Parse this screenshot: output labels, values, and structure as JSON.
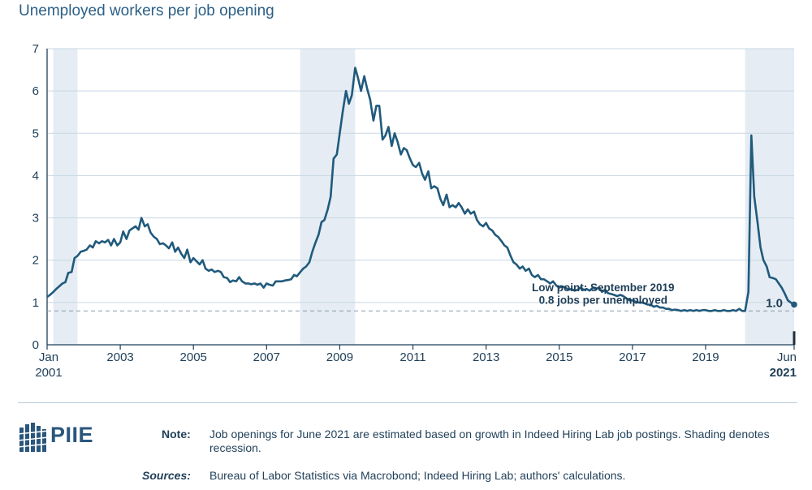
{
  "title": "Unemployed workers per job opening",
  "chart_data": {
    "type": "line",
    "title": "Unemployed workers per job opening",
    "ylim": [
      0,
      7
    ],
    "yticks": [
      "0",
      "1",
      "2",
      "3",
      "4",
      "5",
      "6",
      "7"
    ],
    "xticks": [
      {
        "label": "Jan",
        "label2": "2001",
        "year": 2001.0
      },
      {
        "label": "2003",
        "year": 2003.0
      },
      {
        "label": "2005",
        "year": 2005.0
      },
      {
        "label": "2007",
        "year": 2007.0
      },
      {
        "label": "2009",
        "year": 2009.0
      },
      {
        "label": "2011",
        "year": 2011.0
      },
      {
        "label": "2013",
        "year": 2013.0
      },
      {
        "label": "2015",
        "year": 2015.0
      },
      {
        "label": "2017",
        "year": 2017.0
      },
      {
        "label": "2019",
        "year": 2019.0
      },
      {
        "label": "Jun",
        "label2": "2021",
        "year": 2021.42,
        "bold2": true
      }
    ],
    "grid": true,
    "recessions": [
      {
        "start": 2001.17,
        "end": 2001.83
      },
      {
        "start": 2007.92,
        "end": 2009.42
      },
      {
        "start": 2020.08,
        "end": 2021.42
      }
    ],
    "reference_line": {
      "value": 0.8
    },
    "annotation": {
      "line1": "Low point: September 2019",
      "line2": "0.8 jobs per unemployed"
    },
    "end_label": "1.0",
    "series": [
      {
        "color": "#205a7c",
        "points": [
          [
            2001.0,
            1.13
          ],
          [
            2001.08,
            1.18
          ],
          [
            2001.17,
            1.25
          ],
          [
            2001.25,
            1.32
          ],
          [
            2001.33,
            1.38
          ],
          [
            2001.42,
            1.45
          ],
          [
            2001.5,
            1.48
          ],
          [
            2001.58,
            1.7
          ],
          [
            2001.67,
            1.72
          ],
          [
            2001.75,
            2.05
          ],
          [
            2001.83,
            2.1
          ],
          [
            2001.92,
            2.2
          ],
          [
            2002.0,
            2.22
          ],
          [
            2002.08,
            2.25
          ],
          [
            2002.17,
            2.35
          ],
          [
            2002.25,
            2.3
          ],
          [
            2002.33,
            2.45
          ],
          [
            2002.42,
            2.4
          ],
          [
            2002.5,
            2.45
          ],
          [
            2002.58,
            2.42
          ],
          [
            2002.67,
            2.48
          ],
          [
            2002.75,
            2.35
          ],
          [
            2002.83,
            2.5
          ],
          [
            2002.92,
            2.35
          ],
          [
            2003.0,
            2.42
          ],
          [
            2003.08,
            2.68
          ],
          [
            2003.17,
            2.5
          ],
          [
            2003.25,
            2.7
          ],
          [
            2003.33,
            2.75
          ],
          [
            2003.42,
            2.8
          ],
          [
            2003.5,
            2.72
          ],
          [
            2003.58,
            3.0
          ],
          [
            2003.67,
            2.8
          ],
          [
            2003.75,
            2.85
          ],
          [
            2003.83,
            2.65
          ],
          [
            2003.92,
            2.55
          ],
          [
            2004.0,
            2.5
          ],
          [
            2004.08,
            2.38
          ],
          [
            2004.17,
            2.4
          ],
          [
            2004.25,
            2.35
          ],
          [
            2004.33,
            2.28
          ],
          [
            2004.42,
            2.42
          ],
          [
            2004.5,
            2.2
          ],
          [
            2004.58,
            2.3
          ],
          [
            2004.67,
            2.15
          ],
          [
            2004.75,
            2.05
          ],
          [
            2004.83,
            2.25
          ],
          [
            2004.92,
            1.95
          ],
          [
            2005.0,
            2.05
          ],
          [
            2005.08,
            1.98
          ],
          [
            2005.17,
            1.9
          ],
          [
            2005.25,
            2.0
          ],
          [
            2005.33,
            1.8
          ],
          [
            2005.42,
            1.75
          ],
          [
            2005.5,
            1.78
          ],
          [
            2005.58,
            1.72
          ],
          [
            2005.67,
            1.75
          ],
          [
            2005.75,
            1.72
          ],
          [
            2005.83,
            1.6
          ],
          [
            2005.92,
            1.58
          ],
          [
            2006.0,
            1.48
          ],
          [
            2006.08,
            1.52
          ],
          [
            2006.17,
            1.5
          ],
          [
            2006.25,
            1.6
          ],
          [
            2006.33,
            1.5
          ],
          [
            2006.42,
            1.45
          ],
          [
            2006.5,
            1.45
          ],
          [
            2006.58,
            1.43
          ],
          [
            2006.67,
            1.45
          ],
          [
            2006.75,
            1.42
          ],
          [
            2006.83,
            1.45
          ],
          [
            2006.92,
            1.35
          ],
          [
            2007.0,
            1.45
          ],
          [
            2007.08,
            1.42
          ],
          [
            2007.17,
            1.4
          ],
          [
            2007.25,
            1.5
          ],
          [
            2007.33,
            1.5
          ],
          [
            2007.42,
            1.5
          ],
          [
            2007.5,
            1.52
          ],
          [
            2007.58,
            1.53
          ],
          [
            2007.67,
            1.55
          ],
          [
            2007.75,
            1.65
          ],
          [
            2007.83,
            1.62
          ],
          [
            2007.92,
            1.72
          ],
          [
            2008.0,
            1.8
          ],
          [
            2008.08,
            1.85
          ],
          [
            2008.17,
            1.95
          ],
          [
            2008.25,
            2.2
          ],
          [
            2008.33,
            2.4
          ],
          [
            2008.42,
            2.6
          ],
          [
            2008.5,
            2.9
          ],
          [
            2008.58,
            2.95
          ],
          [
            2008.67,
            3.2
          ],
          [
            2008.75,
            3.5
          ],
          [
            2008.83,
            4.4
          ],
          [
            2008.92,
            4.5
          ],
          [
            2009.0,
            5.0
          ],
          [
            2009.08,
            5.5
          ],
          [
            2009.17,
            6.0
          ],
          [
            2009.25,
            5.7
          ],
          [
            2009.33,
            5.9
          ],
          [
            2009.42,
            6.55
          ],
          [
            2009.5,
            6.3
          ],
          [
            2009.58,
            6.0
          ],
          [
            2009.67,
            6.35
          ],
          [
            2009.75,
            6.05
          ],
          [
            2009.83,
            5.8
          ],
          [
            2009.92,
            5.3
          ],
          [
            2010.0,
            5.65
          ],
          [
            2010.08,
            5.65
          ],
          [
            2010.17,
            4.85
          ],
          [
            2010.25,
            4.95
          ],
          [
            2010.33,
            5.15
          ],
          [
            2010.42,
            4.7
          ],
          [
            2010.5,
            5.0
          ],
          [
            2010.58,
            4.8
          ],
          [
            2010.67,
            4.5
          ],
          [
            2010.75,
            4.65
          ],
          [
            2010.83,
            4.6
          ],
          [
            2010.92,
            4.4
          ],
          [
            2011.0,
            4.25
          ],
          [
            2011.08,
            4.2
          ],
          [
            2011.17,
            4.3
          ],
          [
            2011.25,
            4.05
          ],
          [
            2011.33,
            3.9
          ],
          [
            2011.42,
            4.1
          ],
          [
            2011.5,
            3.7
          ],
          [
            2011.58,
            3.75
          ],
          [
            2011.67,
            3.7
          ],
          [
            2011.75,
            3.45
          ],
          [
            2011.83,
            3.3
          ],
          [
            2011.92,
            3.55
          ],
          [
            2012.0,
            3.25
          ],
          [
            2012.08,
            3.3
          ],
          [
            2012.17,
            3.25
          ],
          [
            2012.25,
            3.35
          ],
          [
            2012.33,
            3.25
          ],
          [
            2012.42,
            3.1
          ],
          [
            2012.5,
            3.2
          ],
          [
            2012.58,
            3.1
          ],
          [
            2012.67,
            3.15
          ],
          [
            2012.75,
            2.95
          ],
          [
            2012.83,
            2.85
          ],
          [
            2012.92,
            2.8
          ],
          [
            2013.0,
            2.88
          ],
          [
            2013.08,
            2.75
          ],
          [
            2013.17,
            2.7
          ],
          [
            2013.25,
            2.6
          ],
          [
            2013.33,
            2.55
          ],
          [
            2013.42,
            2.45
          ],
          [
            2013.5,
            2.35
          ],
          [
            2013.58,
            2.3
          ],
          [
            2013.67,
            2.1
          ],
          [
            2013.75,
            1.95
          ],
          [
            2013.83,
            1.9
          ],
          [
            2013.92,
            1.8
          ],
          [
            2014.0,
            1.85
          ],
          [
            2014.08,
            1.75
          ],
          [
            2014.17,
            1.8
          ],
          [
            2014.25,
            1.65
          ],
          [
            2014.33,
            1.6
          ],
          [
            2014.42,
            1.65
          ],
          [
            2014.5,
            1.55
          ],
          [
            2014.58,
            1.55
          ],
          [
            2014.67,
            1.5
          ],
          [
            2014.75,
            1.45
          ],
          [
            2014.83,
            1.5
          ],
          [
            2014.92,
            1.4
          ],
          [
            2015.0,
            1.35
          ],
          [
            2015.08,
            1.38
          ],
          [
            2015.17,
            1.35
          ],
          [
            2015.25,
            1.3
          ],
          [
            2015.33,
            1.32
          ],
          [
            2015.42,
            1.28
          ],
          [
            2015.5,
            1.3
          ],
          [
            2015.58,
            1.35
          ],
          [
            2015.67,
            1.3
          ],
          [
            2015.75,
            1.32
          ],
          [
            2015.83,
            1.28
          ],
          [
            2015.92,
            1.35
          ],
          [
            2016.0,
            1.32
          ],
          [
            2016.08,
            1.35
          ],
          [
            2016.17,
            1.25
          ],
          [
            2016.25,
            1.3
          ],
          [
            2016.33,
            1.22
          ],
          [
            2016.42,
            1.2
          ],
          [
            2016.5,
            1.18
          ],
          [
            2016.58,
            1.15
          ],
          [
            2016.67,
            1.18
          ],
          [
            2016.75,
            1.15
          ],
          [
            2016.83,
            1.1
          ],
          [
            2016.92,
            1.05
          ],
          [
            2017.0,
            1.05
          ],
          [
            2017.08,
            1.02
          ],
          [
            2017.17,
            1.0
          ],
          [
            2017.25,
            1.0
          ],
          [
            2017.33,
            0.98
          ],
          [
            2017.42,
            0.95
          ],
          [
            2017.5,
            0.95
          ],
          [
            2017.58,
            0.9
          ],
          [
            2017.67,
            0.92
          ],
          [
            2017.75,
            0.88
          ],
          [
            2017.83,
            0.88
          ],
          [
            2017.92,
            0.85
          ],
          [
            2018.0,
            0.85
          ],
          [
            2018.08,
            0.82
          ],
          [
            2018.17,
            0.83
          ],
          [
            2018.25,
            0.82
          ],
          [
            2018.33,
            0.8
          ],
          [
            2018.42,
            0.82
          ],
          [
            2018.5,
            0.8
          ],
          [
            2018.58,
            0.82
          ],
          [
            2018.67,
            0.8
          ],
          [
            2018.75,
            0.82
          ],
          [
            2018.83,
            0.8
          ],
          [
            2018.92,
            0.82
          ],
          [
            2019.0,
            0.82
          ],
          [
            2019.08,
            0.8
          ],
          [
            2019.17,
            0.8
          ],
          [
            2019.25,
            0.82
          ],
          [
            2019.33,
            0.8
          ],
          [
            2019.42,
            0.8
          ],
          [
            2019.5,
            0.82
          ],
          [
            2019.58,
            0.8
          ],
          [
            2019.67,
            0.8
          ],
          [
            2019.75,
            0.82
          ],
          [
            2019.83,
            0.8
          ],
          [
            2019.92,
            0.85
          ],
          [
            2020.0,
            0.8
          ],
          [
            2020.08,
            0.8
          ],
          [
            2020.17,
            1.25
          ],
          [
            2020.25,
            4.95
          ],
          [
            2020.33,
            3.5
          ],
          [
            2020.42,
            2.9
          ],
          [
            2020.5,
            2.3
          ],
          [
            2020.58,
            2.0
          ],
          [
            2020.67,
            1.85
          ],
          [
            2020.75,
            1.6
          ],
          [
            2020.83,
            1.58
          ],
          [
            2020.92,
            1.55
          ],
          [
            2021.0,
            1.45
          ],
          [
            2021.08,
            1.35
          ],
          [
            2021.17,
            1.2
          ],
          [
            2021.25,
            1.05
          ],
          [
            2021.33,
            1.0
          ],
          [
            2021.42,
            0.95
          ]
        ]
      }
    ]
  },
  "footer": {
    "logo_text": "PIIE",
    "note_label": "Note:",
    "note_text": "Job openings for June 2021 are estimated based on growth in Indeed Hiring Lab job postings. Shading denotes recession.",
    "sources_label": "Sources:",
    "sources_text": "Bureau of Labor Statistics via Macrobond; Indeed Hiring Lab; authors' calculations."
  },
  "colors": {
    "line": "#205a7c",
    "recession": "#e5ecf3",
    "grid": "#c9d7e3",
    "text": "#1f3f58"
  }
}
